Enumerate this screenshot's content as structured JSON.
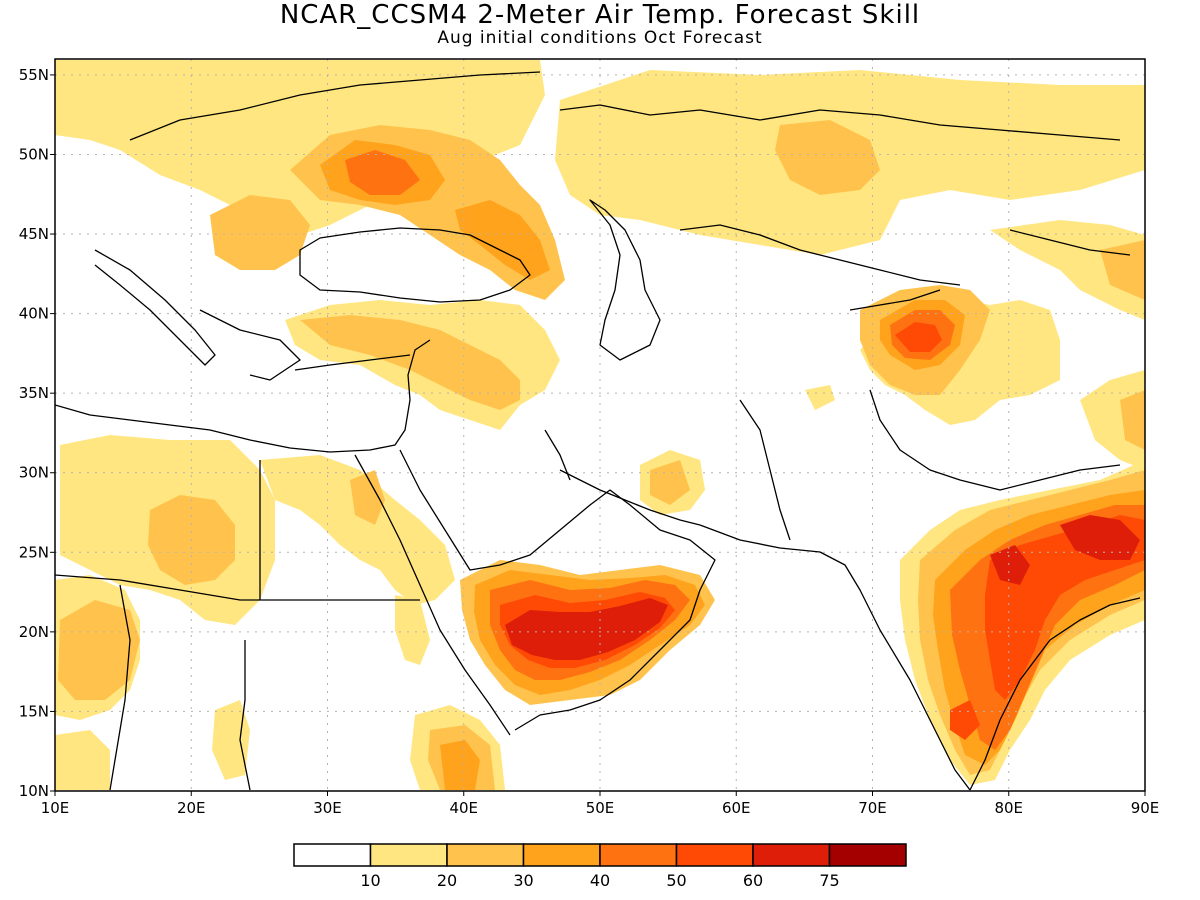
{
  "title": "NCAR_CCSM4 2-Meter Air Temp. Forecast Skill",
  "subtitle": "Aug initial conditions  Oct Forecast",
  "map": {
    "lon_range": [
      10,
      90
    ],
    "lat_range": [
      10,
      56
    ],
    "lat_ticks": [
      {
        "value": 55,
        "label": "55N"
      },
      {
        "value": 50,
        "label": "50N"
      },
      {
        "value": 45,
        "label": "45N"
      },
      {
        "value": 40,
        "label": "40N"
      },
      {
        "value": 35,
        "label": "35N"
      },
      {
        "value": 30,
        "label": "30N"
      },
      {
        "value": 25,
        "label": "25N"
      },
      {
        "value": 20,
        "label": "20N"
      },
      {
        "value": 15,
        "label": "15N"
      },
      {
        "value": 10,
        "label": "10N"
      }
    ],
    "lon_ticks": [
      {
        "value": 10,
        "label": "10E"
      },
      {
        "value": 20,
        "label": "20E"
      },
      {
        "value": 30,
        "label": "30E"
      },
      {
        "value": 40,
        "label": "40E"
      },
      {
        "value": 50,
        "label": "50E"
      },
      {
        "value": 60,
        "label": "60E"
      },
      {
        "value": 70,
        "label": "70E"
      },
      {
        "value": 80,
        "label": "80E"
      },
      {
        "value": 90,
        "label": "90E"
      }
    ],
    "grid": true
  },
  "legend": {
    "colors": [
      "#ffffff",
      "#ffe680",
      "#ffc34d",
      "#ffa21c",
      "#ff7212",
      "#ff4a06",
      "#de1e08",
      "#a50000"
    ],
    "labels": [
      "10",
      "20",
      "30",
      "40",
      "50",
      "60",
      "75"
    ]
  }
}
